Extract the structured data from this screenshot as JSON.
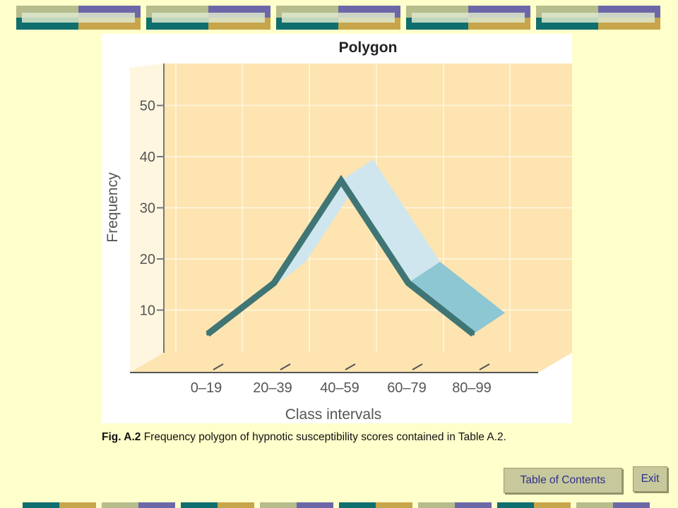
{
  "colors": {
    "background": "#ffffcc",
    "plot_area": "#fde4b0",
    "line": "#3f7575",
    "ribbon_light": "#cfe6ee",
    "ribbon_dark": "#8ec7d4",
    "teal": "#0f6e6e",
    "gold": "#c7a54a",
    "purple": "#6c68a8",
    "olive": "#b6bc8c",
    "button_text": "#2e2f8a"
  },
  "chart_data": {
    "type": "line",
    "title": "Polygon",
    "xlabel": "Class intervals",
    "ylabel": "Frequency",
    "categories": [
      "0–19",
      "20–39",
      "40–59",
      "60–79",
      "80–99"
    ],
    "values": [
      6,
      16,
      36,
      16,
      6
    ],
    "yticks": [
      10,
      20,
      30,
      40,
      50
    ],
    "ylim": [
      0,
      60
    ],
    "grid": true,
    "style": "3d ribbon"
  },
  "caption": {
    "label": "Fig. A.2",
    "text": " Frequency polygon of hypnotic susceptibility scores contained in Table A.2."
  },
  "nav": {
    "toc_label": "Table of Contents",
    "exit_label": "Exit"
  }
}
